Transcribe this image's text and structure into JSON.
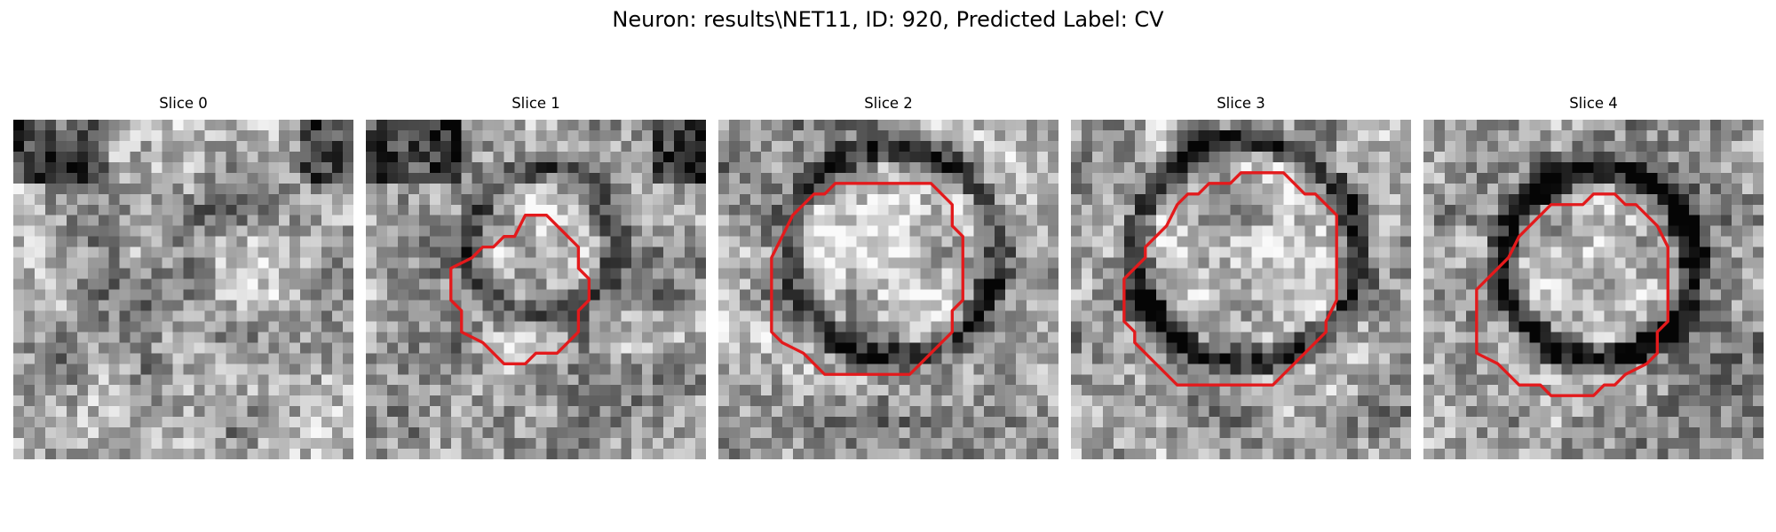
{
  "figure": {
    "title": "Neuron: results\\NET11, ID: 920, Predicted Label: CV"
  },
  "slices": [
    {
      "title": "Slice 0",
      "overlay": "none"
    },
    {
      "title": "Slice 1",
      "overlay": "red-contour"
    },
    {
      "title": "Slice 2",
      "overlay": "red-contour"
    },
    {
      "title": "Slice 3",
      "overlay": "red-contour"
    },
    {
      "title": "Slice 4",
      "overlay": "red-contour"
    }
  ],
  "colors": {
    "contour": "#e31a1c",
    "background": "#ffffff"
  }
}
